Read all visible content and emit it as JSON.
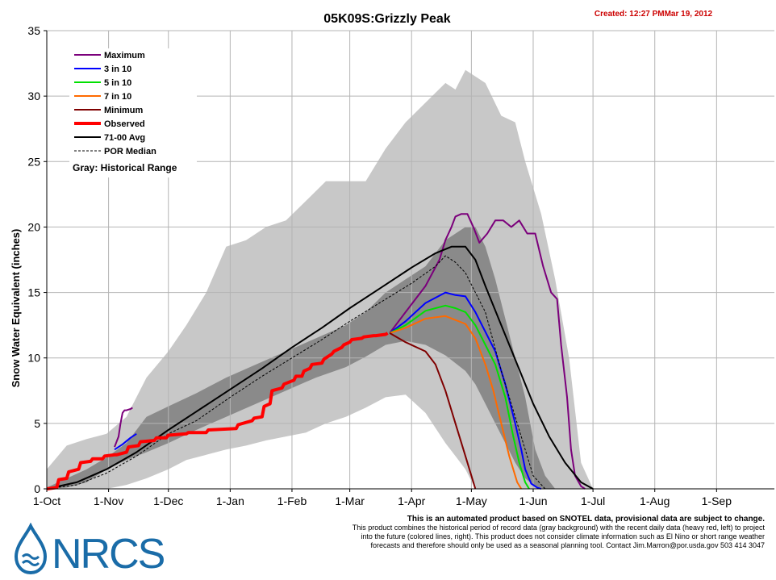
{
  "header": {
    "title": "05K09S:Grizzly Peak",
    "created": "Created: 12:27 PMMar 19, 2012"
  },
  "colors": {
    "maximum": "#7b007b",
    "p30": "#0000ff",
    "p50": "#00e000",
    "p70": "#ff6a00",
    "minimum": "#7f0000",
    "observed": "#ff0000",
    "avg": "#000000",
    "median": "#000000",
    "range_light": "#c8c8c8",
    "range_dark": "#8a8a8a",
    "created": "#cc0000"
  },
  "legend": {
    "items": [
      {
        "key": "maximum",
        "label": "Maximum"
      },
      {
        "key": "p30",
        "label": "3 in 10"
      },
      {
        "key": "p50",
        "label": "5 in 10"
      },
      {
        "key": "p70",
        "label": "7 in 10"
      },
      {
        "key": "minimum",
        "label": "Minimum"
      },
      {
        "key": "observed",
        "label": "Observed"
      },
      {
        "key": "avg",
        "label": "71-00 Avg"
      },
      {
        "key": "median",
        "label": "POR Median"
      }
    ],
    "gray_note": "Gray: Historical Range"
  },
  "disclaimer": {
    "line1": "This is an automated product based on SNOTEL data, provisional data are subject to change.",
    "line2": "This product combines the historical period of record data (gray background) with the recent daily data (heavy red, left) to project",
    "line3": "into the future (colored lines, right). This product does not consider climate information such as El Nino or short range weather",
    "line4": "forecasts and therefore should only be used as a seasonal planning tool. Contact Jim.Marron@por.usda.gov 503 414 3047"
  },
  "logo": {
    "text": "NRCS"
  },
  "chart_data": {
    "type": "line",
    "ylabel": "Snow Water Equivalent (inches)",
    "xlabel": "",
    "ylim": [
      0,
      35
    ],
    "yticks": [
      0,
      5,
      10,
      15,
      20,
      25,
      30,
      35
    ],
    "xlim": [
      0,
      365
    ],
    "xticks": [
      {
        "day": 0,
        "label": "1-Oct"
      },
      {
        "day": 31,
        "label": "1-Nov"
      },
      {
        "day": 61,
        "label": "1-Dec"
      },
      {
        "day": 92,
        "label": "1-Jan"
      },
      {
        "day": 123,
        "label": "1-Feb"
      },
      {
        "day": 152,
        "label": "1-Mar"
      },
      {
        "day": 183,
        "label": "1-Apr"
      },
      {
        "day": 213,
        "label": "1-May"
      },
      {
        "day": 244,
        "label": "1-Jun"
      },
      {
        "day": 274,
        "label": "1-Jul"
      },
      {
        "day": 305,
        "label": "1-Aug"
      },
      {
        "day": 336,
        "label": "1-Sep"
      }
    ],
    "grid": true,
    "legend_position": "top-left",
    "historical_range_outer": {
      "x": [
        0,
        10,
        20,
        30,
        40,
        50,
        61,
        70,
        80,
        90,
        100,
        110,
        120,
        130,
        140,
        150,
        160,
        170,
        180,
        190,
        200,
        205,
        210,
        215,
        220,
        228,
        235,
        240,
        248,
        255,
        262,
        268,
        274
      ],
      "upper": [
        1.5,
        3.3,
        3.8,
        4.2,
        5.5,
        8.5,
        10.5,
        12.5,
        15,
        18.5,
        19,
        20,
        20.5,
        22,
        23.5,
        23.5,
        23.5,
        26,
        28,
        29.5,
        31,
        30.5,
        32,
        31.5,
        31,
        28.5,
        28,
        25,
        21,
        16,
        10,
        2,
        0
      ],
      "lower": [
        0,
        0,
        0,
        0,
        0.3,
        0.8,
        1.5,
        2.2,
        2.6,
        3.0,
        3.3,
        3.7,
        4.0,
        4.3,
        5.0,
        5.5,
        6.2,
        7.0,
        7.2,
        5.8,
        3.5,
        2.5,
        1.5,
        0,
        0,
        0,
        0,
        0,
        0,
        0,
        0,
        0,
        0
      ]
    },
    "historical_range_inner": {
      "x": [
        0,
        10,
        20,
        30,
        40,
        50,
        61,
        75,
        90,
        105,
        120,
        135,
        150,
        160,
        170,
        180,
        190,
        200,
        210,
        215,
        220,
        225,
        230,
        235,
        240,
        245,
        250,
        255
      ],
      "upper": [
        0.1,
        0.8,
        1.5,
        2.4,
        3.5,
        5.5,
        6.3,
        7.3,
        8.5,
        9.5,
        10.5,
        11.5,
        12.5,
        13.5,
        15,
        16,
        17,
        19,
        20,
        20,
        18.5,
        16,
        13,
        10,
        7,
        3,
        1,
        0
      ],
      "lower": [
        0,
        0.1,
        0.5,
        1.5,
        2.2,
        2.8,
        3.5,
        4.5,
        5.5,
        6.5,
        7.5,
        8.5,
        9.3,
        10.1,
        11,
        11.3,
        11,
        10.2,
        9,
        8,
        6.5,
        5,
        3.5,
        2,
        0.8,
        0.2,
        0,
        0
      ]
    },
    "series": [
      {
        "name": "Maximum",
        "key": "maximum",
        "width": 2,
        "x": [
          34,
          36,
          37,
          38,
          39,
          40,
          42,
          43
        ],
        "y": [
          3.2,
          4.0,
          5.0,
          5.8,
          6.0,
          6.0,
          6.1,
          6.2
        ]
      },
      {
        "name": "Maximum",
        "key": "maximum",
        "width": 2,
        "x": [
          172,
          180,
          190,
          197,
          200,
          203,
          205,
          208,
          211,
          214,
          217,
          221,
          225,
          229,
          233,
          237,
          241,
          245,
          249,
          253,
          256,
          258,
          261,
          263,
          265,
          268,
          270
        ],
        "y": [
          11.9,
          13.5,
          15.5,
          17.5,
          19,
          20,
          20.8,
          21,
          21,
          20,
          18.8,
          19.5,
          20.5,
          20.5,
          20,
          20.5,
          19.5,
          19.5,
          17,
          15,
          14.5,
          11,
          7,
          3,
          1,
          0.2,
          0
        ]
      },
      {
        "name": "3 in 10",
        "key": "p30",
        "width": 2,
        "x": [
          34,
          38,
          42,
          45
        ],
        "y": [
          3.0,
          3.4,
          3.9,
          4.2
        ]
      },
      {
        "name": "3 in 10",
        "key": "p30",
        "width": 2,
        "x": [
          172,
          180,
          190,
          200,
          205,
          210,
          215,
          220,
          225,
          230,
          235,
          238,
          240,
          243,
          246,
          248
        ],
        "y": [
          11.9,
          12.8,
          14.2,
          15.0,
          14.8,
          14.7,
          13.5,
          12,
          10.5,
          8,
          5,
          3,
          1.5,
          0.4,
          0.1,
          0
        ]
      },
      {
        "name": "5 in 10",
        "key": "p50",
        "width": 2,
        "x": [
          172,
          180,
          190,
          200,
          205,
          210,
          215,
          220,
          225,
          230,
          234,
          237,
          240,
          242
        ],
        "y": [
          11.9,
          12.5,
          13.6,
          14,
          13.8,
          13.5,
          12.5,
          11,
          9.5,
          7,
          4,
          2,
          0.5,
          0
        ]
      },
      {
        "name": "7 in 10",
        "key": "p70",
        "width": 2,
        "x": [
          172,
          180,
          190,
          200,
          205,
          210,
          215,
          220,
          224,
          228,
          232,
          236,
          238
        ],
        "y": [
          11.9,
          12.3,
          13,
          13.2,
          12.9,
          12.6,
          11.5,
          9.5,
          7.5,
          5,
          2.5,
          0.5,
          0
        ]
      },
      {
        "name": "Minimum",
        "key": "minimum",
        "width": 2,
        "x": [
          172,
          180,
          190,
          195,
          200,
          205,
          210,
          213,
          215
        ],
        "y": [
          11.9,
          11.2,
          10.5,
          9.5,
          7.5,
          5,
          2.5,
          1,
          0
        ]
      },
      {
        "name": "71-00 Avg",
        "key": "avg",
        "width": 2,
        "x": [
          0,
          15,
          30,
          45,
          61,
          75,
          92,
          108,
          123,
          138,
          152,
          168,
          183,
          195,
          203,
          210,
          215,
          220,
          228,
          236,
          244,
          252,
          260,
          268,
          274
        ],
        "y": [
          0,
          0.5,
          1.5,
          2.8,
          4.5,
          5.9,
          7.6,
          9.2,
          10.8,
          12.3,
          13.8,
          15.4,
          16.9,
          18,
          18.5,
          18.5,
          17.5,
          15.5,
          12.5,
          9.5,
          6.5,
          4,
          2,
          0.5,
          0
        ]
      },
      {
        "name": "POR Median",
        "key": "median",
        "width": 1,
        "dash": true,
        "x": [
          0,
          15,
          30,
          45,
          61,
          75,
          92,
          108,
          123,
          138,
          152,
          168,
          183,
          195,
          200,
          205,
          210,
          215,
          220,
          228,
          236,
          244,
          250
        ],
        "y": [
          0,
          0.3,
          1.2,
          2.5,
          4.2,
          5.2,
          7,
          8.6,
          10,
          11.4,
          12.8,
          14.3,
          15.7,
          17,
          17.8,
          17.3,
          16.5,
          15,
          13.5,
          9,
          5,
          1,
          0
        ]
      },
      {
        "name": "Observed",
        "key": "observed",
        "width": 4,
        "x": [
          0,
          5,
          6,
          10,
          11,
          16,
          17,
          22,
          23,
          28,
          29,
          34,
          35,
          40,
          41,
          46,
          47,
          54,
          55,
          60,
          61,
          70,
          71,
          80,
          81,
          95,
          96,
          103,
          104,
          108,
          109,
          112,
          113,
          118,
          119,
          124,
          125,
          128,
          129,
          132,
          133,
          138,
          139,
          143,
          144,
          148,
          149,
          152,
          153,
          158,
          159,
          164,
          165,
          170,
          171
        ],
        "y": [
          0,
          0.1,
          0.7,
          0.8,
          1.3,
          1.5,
          2.0,
          2.1,
          2.3,
          2.3,
          2.5,
          2.6,
          2.6,
          2.8,
          3.2,
          3.3,
          3.6,
          3.7,
          3.9,
          3.9,
          4.1,
          4.2,
          4.3,
          4.3,
          4.5,
          4.6,
          4.9,
          5.2,
          5.4,
          5.5,
          6.3,
          6.5,
          7.5,
          7.7,
          8.0,
          8.3,
          8.6,
          8.6,
          9.0,
          9.2,
          9.5,
          9.6,
          9.9,
          10.3,
          10.5,
          10.8,
          11.0,
          11.2,
          11.4,
          11.5,
          11.6,
          11.7,
          11.7,
          11.8,
          11.9
        ]
      }
    ]
  }
}
